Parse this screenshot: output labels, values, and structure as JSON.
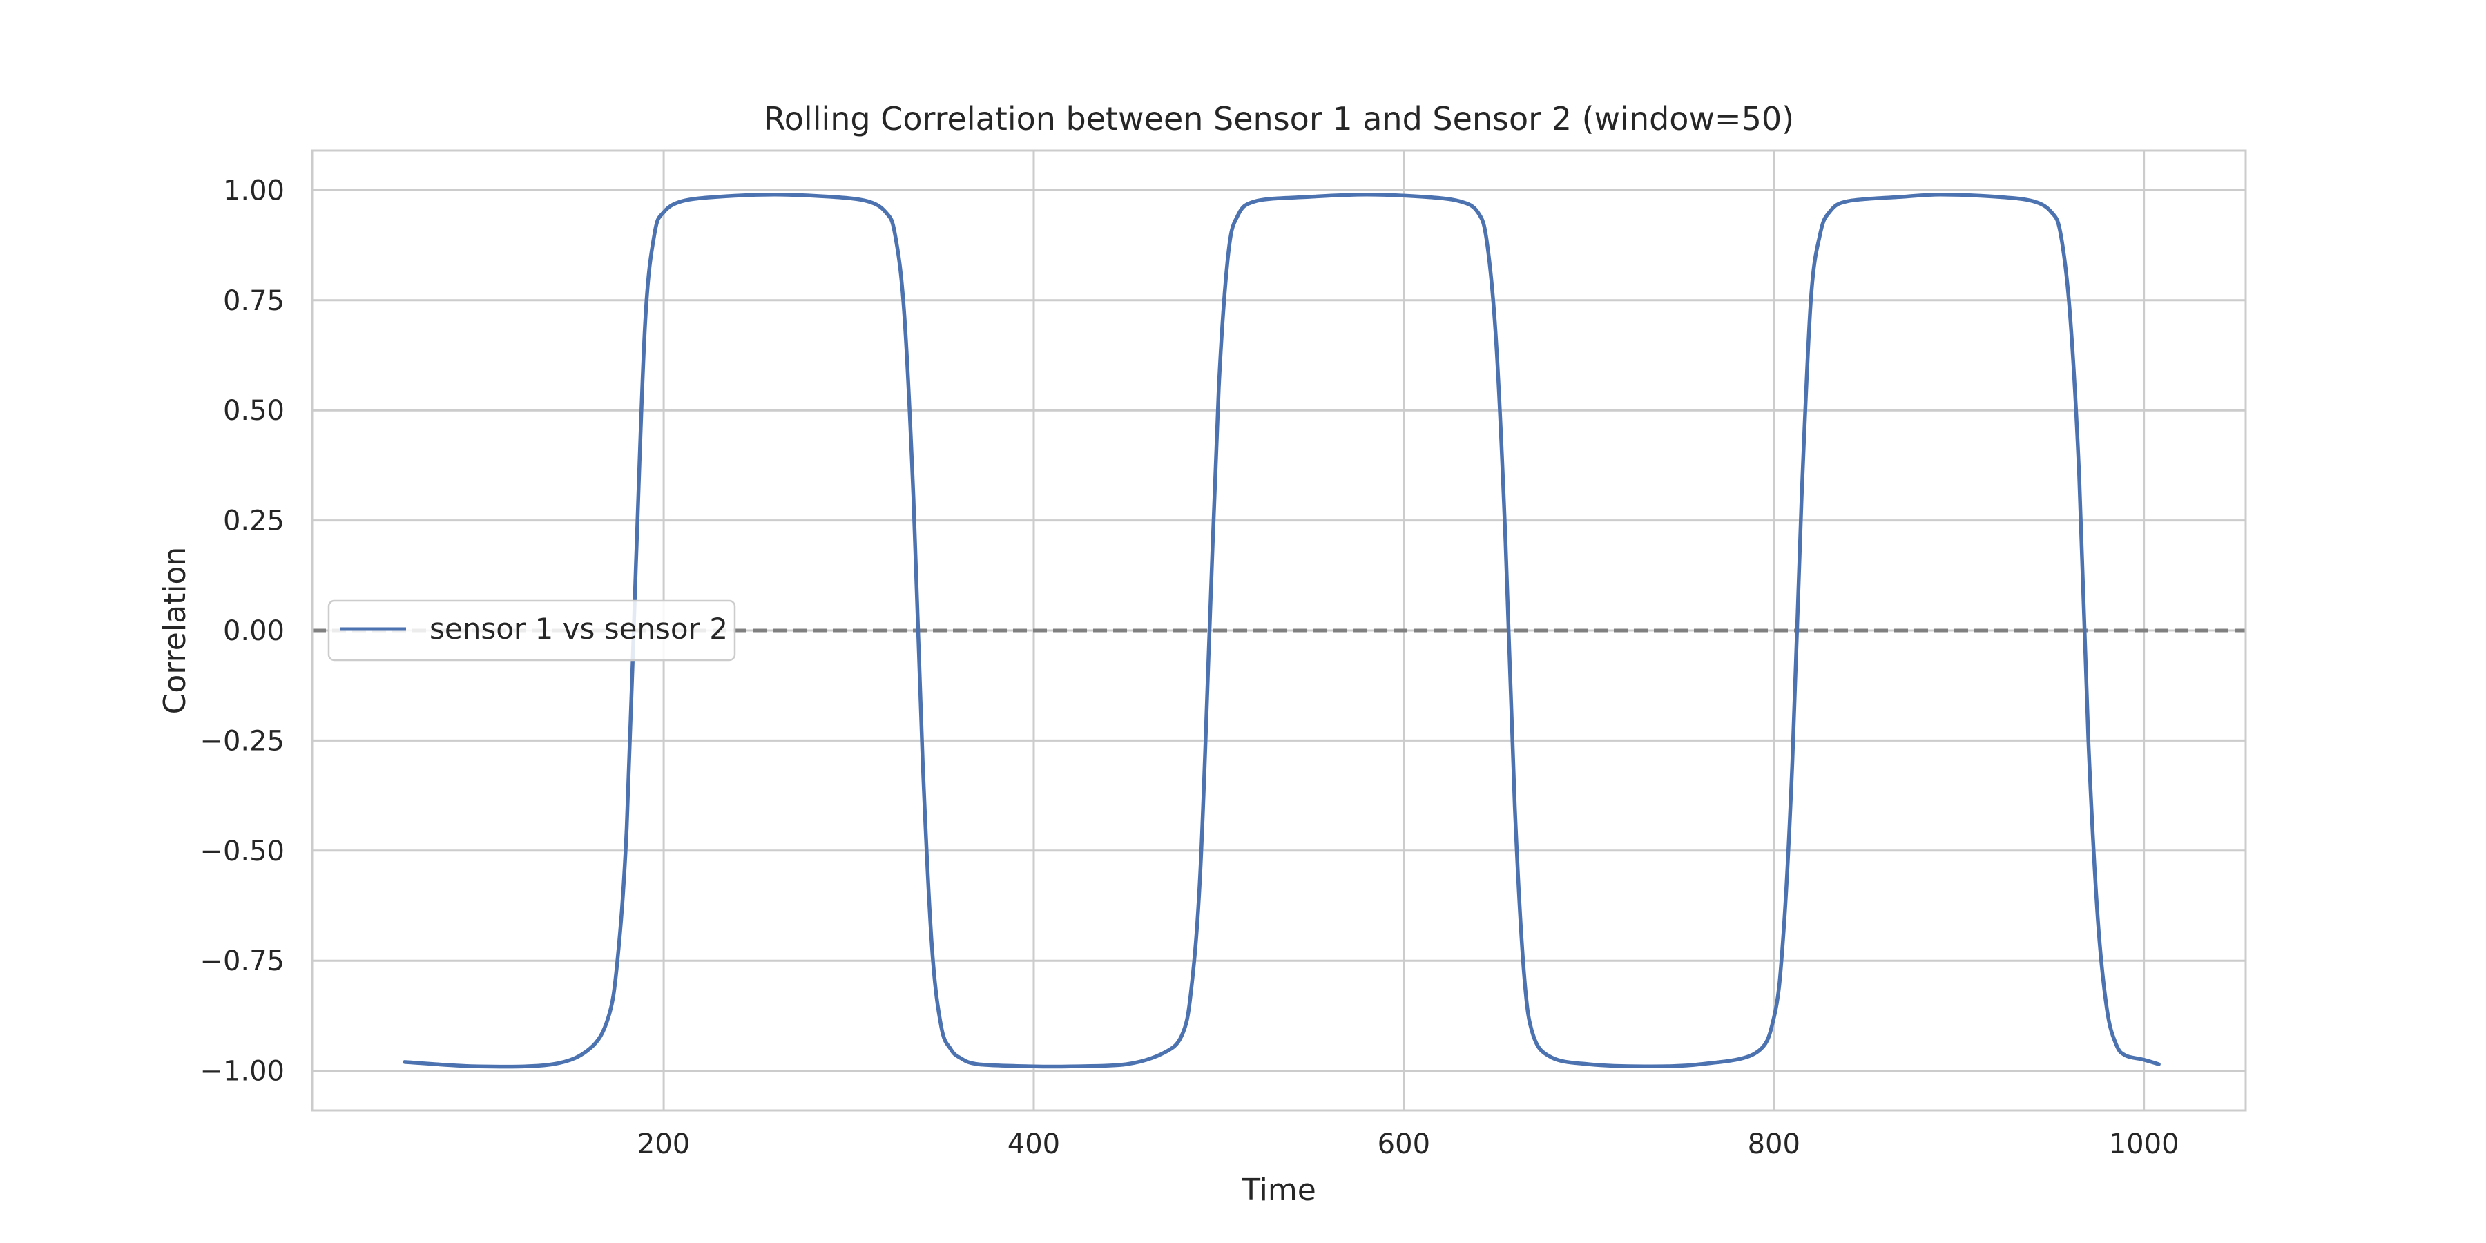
{
  "chart_data": {
    "type": "line",
    "title": "Rolling Correlation between Sensor 1 and Sensor 2 (window=50)",
    "xlabel": "Time",
    "ylabel": "Correlation",
    "xlim": [
      10,
      1055
    ],
    "ylim": [
      -1.09,
      1.09
    ],
    "xticks": [
      200,
      400,
      600,
      800,
      1000
    ],
    "xtick_labels": [
      "200",
      "400",
      "600",
      "800",
      "1000"
    ],
    "yticks": [
      1.0,
      0.75,
      0.5,
      0.25,
      0.0,
      -0.25,
      -0.5,
      -0.75,
      -1.0
    ],
    "ytick_labels": [
      "1.00",
      "0.75",
      "0.50",
      "0.25",
      "0.00",
      "−0.25",
      "−0.50",
      "−0.75",
      "−1.00"
    ],
    "grid": true,
    "legend_position": "center-left",
    "reference_line": {
      "y": 0.0,
      "style": "dashed",
      "color": "#808080"
    },
    "series": [
      {
        "name": "sensor 1 vs sensor 2",
        "color": "#4c72b0",
        "x": [
          60,
          100,
          140,
          160,
          170,
          175,
          180,
          185,
          190,
          195,
          200,
          210,
          230,
          260,
          290,
          310,
          320,
          325,
          330,
          335,
          340,
          345,
          350,
          355,
          360,
          370,
          400,
          420,
          450,
          470,
          480,
          485,
          490,
          495,
          500,
          505,
          510,
          520,
          550,
          580,
          610,
          630,
          640,
          645,
          650,
          655,
          660,
          665,
          670,
          680,
          700,
          730,
          760,
          790,
          800,
          805,
          810,
          815,
          820,
          825,
          830,
          840,
          870,
          890,
          920,
          940,
          950,
          955,
          960,
          965,
          970,
          975,
          980,
          985,
          990,
          1000,
          1008
        ],
        "values": [
          -0.98,
          -0.99,
          -0.985,
          -0.95,
          -0.88,
          -0.75,
          -0.45,
          0.15,
          0.7,
          0.9,
          0.95,
          0.975,
          0.985,
          0.99,
          0.985,
          0.975,
          0.95,
          0.9,
          0.72,
          0.3,
          -0.3,
          -0.72,
          -0.9,
          -0.95,
          -0.97,
          -0.985,
          -0.99,
          -0.99,
          -0.985,
          -0.96,
          -0.92,
          -0.82,
          -0.55,
          0.0,
          0.55,
          0.85,
          0.94,
          0.975,
          0.985,
          0.99,
          0.985,
          0.975,
          0.95,
          0.88,
          0.65,
          0.2,
          -0.4,
          -0.78,
          -0.92,
          -0.97,
          -0.985,
          -0.99,
          -0.985,
          -0.96,
          -0.88,
          -0.7,
          -0.3,
          0.3,
          0.75,
          0.9,
          0.95,
          0.975,
          0.985,
          0.99,
          0.985,
          0.975,
          0.95,
          0.9,
          0.72,
          0.35,
          -0.25,
          -0.65,
          -0.86,
          -0.94,
          -0.965,
          -0.975,
          -0.985
        ]
      }
    ]
  }
}
